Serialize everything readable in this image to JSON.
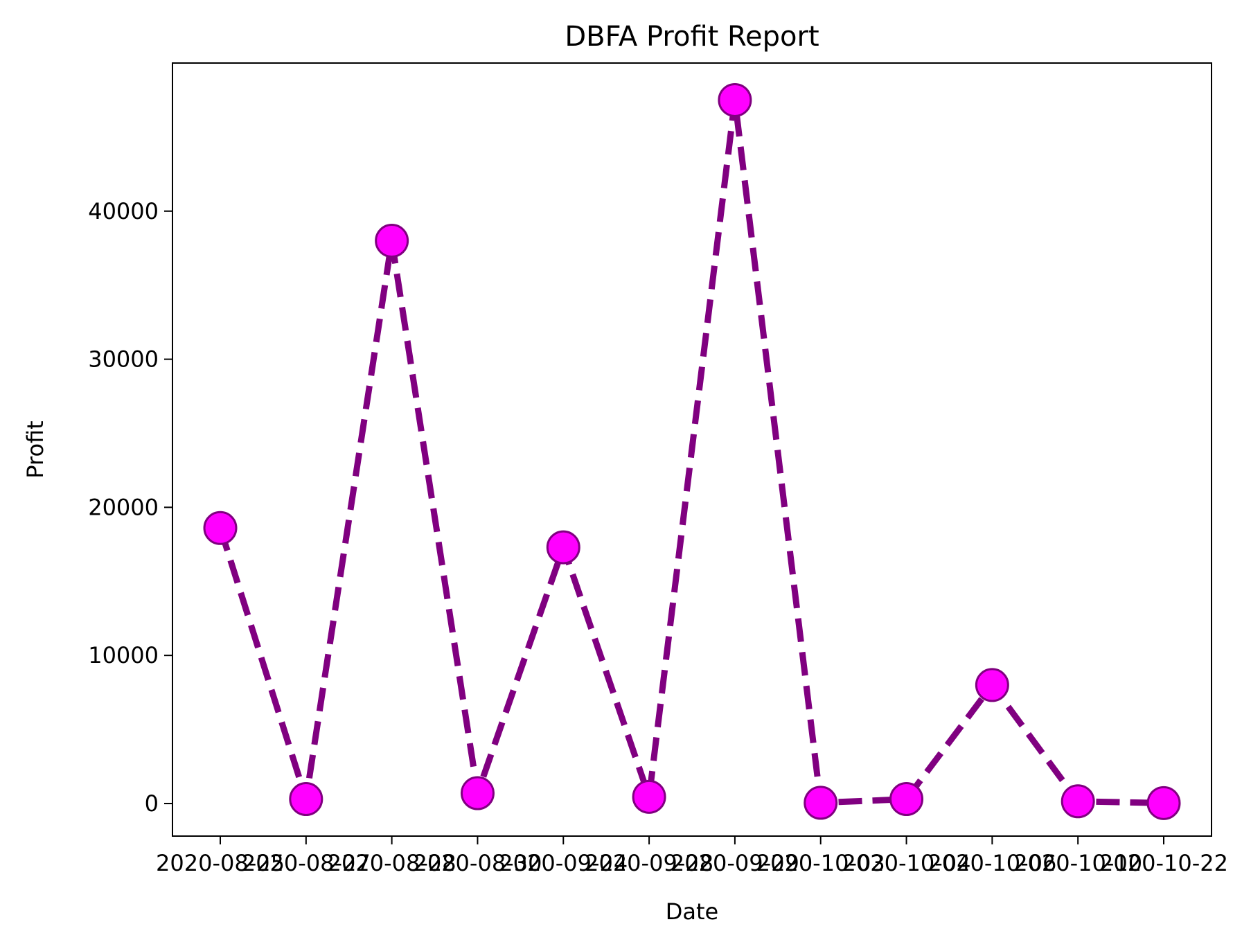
{
  "chart_data": {
    "type": "line",
    "title": "DBFA Profit Report",
    "xlabel": "Date",
    "ylabel": "Profit",
    "categories": [
      "2020-08-25",
      "2020-08-27",
      "2020-08-28",
      "2020-08-30",
      "2020-09-24",
      "2020-09-28",
      "2020-09-29",
      "2020-10-03",
      "2020-10-04",
      "2020-10-06",
      "2020-10-10",
      "2020-10-22"
    ],
    "series": [
      {
        "values": [
          18600,
          300,
          38000,
          700,
          17300,
          450,
          47500,
          50,
          300,
          8000,
          150,
          30
        ]
      }
    ],
    "yticks": [
      0,
      10000,
      20000,
      30000,
      40000
    ],
    "ylim": [
      -2200,
      50000
    ],
    "grid": false,
    "legend": "none",
    "line_color": "#800080",
    "line_style": "dashed",
    "marker_fill": "#ff00ff",
    "marker_edge": "#800080"
  }
}
